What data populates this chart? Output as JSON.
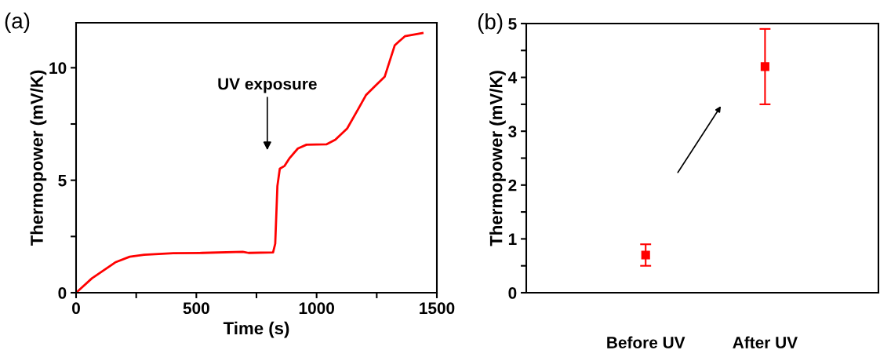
{
  "chart_data": [
    {
      "type": "line",
      "title": "(a)",
      "xlabel": "Time (s)",
      "ylabel": "Thermopower (mV/K)",
      "x": [
        0,
        66,
        102,
        163,
        223,
        283,
        404,
        524,
        693,
        717,
        819,
        828,
        837,
        847,
        867,
        886,
        922,
        958,
        1042,
        1078,
        1127,
        1175,
        1205,
        1247,
        1283,
        1325,
        1367,
        1440
      ],
      "series": [
        {
          "color": "#ff0000",
          "values": [
            0,
            0.64,
            0.9,
            1.35,
            1.6,
            1.69,
            1.76,
            1.77,
            1.82,
            1.77,
            1.79,
            2.18,
            4.74,
            5.51,
            5.64,
            5.96,
            6.41,
            6.58,
            6.6,
            6.8,
            7.3,
            8.2,
            8.78,
            9.23,
            9.6,
            11.0,
            11.4,
            11.54
          ]
        }
      ],
      "xlim": [
        0,
        1500
      ],
      "xticks": [
        0,
        {
          "value": 250,
          "label": null
        },
        500,
        {
          "value": 750,
          "label": null
        },
        1000,
        {
          "value": 1250,
          "label": null
        },
        1500
      ],
      "ylim": [
        0,
        12
      ],
      "yticks": [
        0,
        {
          "value": 2.5,
          "label": null
        },
        5,
        {
          "value": 7.5,
          "label": null
        },
        10
      ],
      "annotations": [
        "UV exposure"
      ],
      "grid": false,
      "legend": false,
      "marker": "none",
      "line_style": "solid"
    },
    {
      "type": "scatter",
      "title": "(b)",
      "ylabel": "Thermopower (mV/K)",
      "categories": [
        "Before UV",
        "After UV"
      ],
      "series": [
        {
          "color": "#ff0000",
          "values": [
            0.7,
            4.2
          ],
          "errors": [
            0.2,
            0.7
          ]
        }
      ],
      "ylim": [
        0,
        5
      ],
      "yticks": [
        0,
        {
          "value": 0.5,
          "label": null
        },
        1,
        {
          "value": 1.5,
          "label": null
        },
        2,
        {
          "value": 2.5,
          "label": null
        },
        3,
        {
          "value": 3.5,
          "label": null
        },
        4,
        {
          "value": 4.5,
          "label": null
        },
        5
      ],
      "grid": false,
      "legend": false,
      "marker": "square"
    }
  ]
}
